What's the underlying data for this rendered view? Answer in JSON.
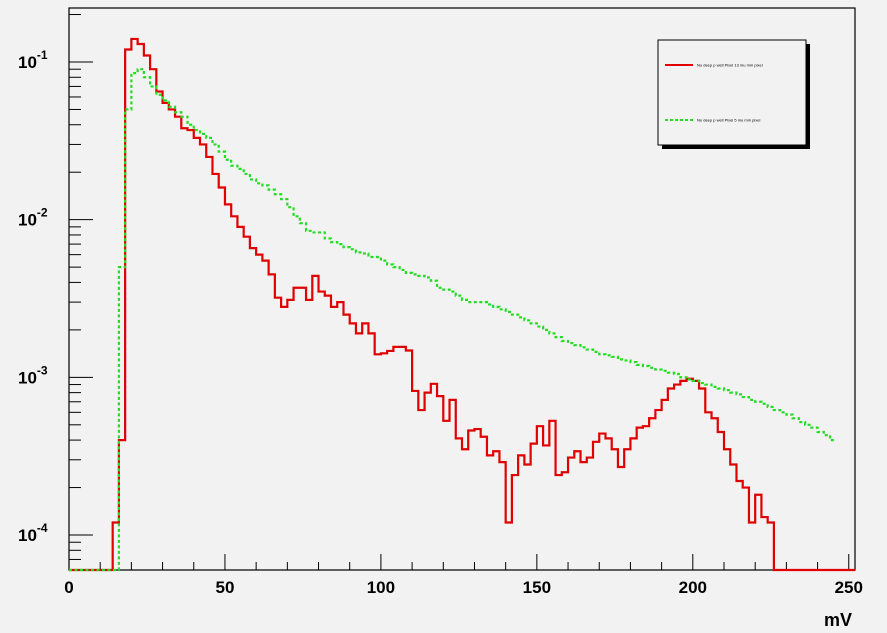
{
  "chart_data": {
    "type": "line",
    "step": true,
    "xlabel": "mV",
    "ylabel": "",
    "xlim": [
      0,
      252
    ],
    "ylim": [
      6e-05,
      0.22
    ],
    "yscale": "log",
    "grid": false,
    "legend_position": "top-right",
    "x_ticks": [
      {
        "value": 0,
        "label": "0"
      },
      {
        "value": 50,
        "label": "50"
      },
      {
        "value": 100,
        "label": "100"
      },
      {
        "value": 150,
        "label": "150"
      },
      {
        "value": 200,
        "label": "200"
      },
      {
        "value": 250,
        "label": "250"
      }
    ],
    "y_ticks": [
      {
        "value": 0.1,
        "base": "10",
        "exp": "-1"
      },
      {
        "value": 0.01,
        "base": "10",
        "exp": "-2"
      },
      {
        "value": 0.001,
        "base": "10",
        "exp": "-3"
      },
      {
        "value": 0.0001,
        "base": "10",
        "exp": "-4"
      }
    ],
    "bin_width": 2,
    "bin_start": 0,
    "series": [
      {
        "name": "No deep p well Pixel 13 mu mm pixel",
        "color": "#e00000",
        "dash": "solid",
        "values": [
          0,
          0,
          0,
          0,
          0,
          0,
          0,
          0.00012,
          0.0004,
          0.12,
          0.14,
          0.13,
          0.11,
          0.09,
          0.065,
          0.055,
          0.05,
          0.045,
          0.038,
          0.037,
          0.033,
          0.03,
          0.025,
          0.0195,
          0.016,
          0.0125,
          0.0105,
          0.009,
          0.0078,
          0.0066,
          0.006,
          0.0055,
          0.0045,
          0.0032,
          0.0028,
          0.0031,
          0.0037,
          0.0037,
          0.0031,
          0.0044,
          0.0035,
          0.0033,
          0.0028,
          0.003,
          0.0025,
          0.0022,
          0.0019,
          0.0022,
          0.0019,
          0.0014,
          0.00142,
          0.00147,
          0.00156,
          0.00156,
          0.00148,
          0.00082,
          0.00062,
          0.0008,
          0.00091,
          0.00076,
          0.00053,
          0.00072,
          0.00041,
          0.00035,
          0.00046,
          0.00047,
          0.00042,
          0.00032,
          0.00034,
          0.00029,
          0.00012,
          0.00024,
          0.00032,
          0.00028,
          0.00038,
          0.00049,
          0.00037,
          0.00053,
          0.00024,
          0.00025,
          0.00031,
          0.00034,
          0.00029,
          0.00031,
          0.00039,
          0.00044,
          0.00041,
          0.00035,
          0.00027,
          0.00035,
          0.00041,
          0.00048,
          0.00049,
          0.00055,
          0.00062,
          0.00072,
          0.00085,
          0.0009,
          0.00095,
          0.00098,
          0.00095,
          0.00085,
          0.0006,
          0.00055,
          0.00045,
          0.00035,
          0.00028,
          0.00022,
          0.0002,
          0.00012,
          0.00018,
          0.00013,
          0.00012,
          0.0,
          0,
          0,
          0,
          0,
          0,
          0,
          0,
          0,
          0,
          0,
          0,
          0
        ]
      },
      {
        "name": "No deep p well Pixel 5 mu mm pixel",
        "color": "#22dd22",
        "dash": "dotted",
        "values": [
          0,
          0,
          0,
          0,
          0,
          0,
          0,
          0,
          0.005,
          0.05,
          0.085,
          0.09,
          0.08,
          0.07,
          0.062,
          0.057,
          0.052,
          0.048,
          0.045,
          0.04,
          0.037,
          0.035,
          0.033,
          0.03,
          0.027,
          0.024,
          0.022,
          0.021,
          0.0195,
          0.018,
          0.017,
          0.0165,
          0.0155,
          0.0145,
          0.0135,
          0.012,
          0.0105,
          0.0095,
          0.0085,
          0.0083,
          0.0083,
          0.0076,
          0.0072,
          0.007,
          0.0067,
          0.0065,
          0.0062,
          0.0061,
          0.0058,
          0.0058,
          0.0055,
          0.0052,
          0.005,
          0.0048,
          0.0046,
          0.0045,
          0.0044,
          0.0043,
          0.0041,
          0.0037,
          0.0036,
          0.0035,
          0.0033,
          0.0031,
          0.003,
          0.003,
          0.003,
          0.0029,
          0.0028,
          0.0027,
          0.0026,
          0.0025,
          0.0024,
          0.0023,
          0.0022,
          0.0021,
          0.002,
          0.0019,
          0.0018,
          0.0017,
          0.00165,
          0.0016,
          0.00155,
          0.0015,
          0.00145,
          0.0014,
          0.00138,
          0.00135,
          0.0013,
          0.00128,
          0.00125,
          0.0012,
          0.00118,
          0.00115,
          0.00112,
          0.0011,
          0.00107,
          0.00105,
          0.001,
          0.00097,
          0.00095,
          0.00092,
          0.0009,
          0.00087,
          0.00085,
          0.00083,
          0.0008,
          0.00078,
          0.00075,
          0.00072,
          0.0007,
          0.00068,
          0.00065,
          0.00062,
          0.0006,
          0.00058,
          0.00055,
          0.00052,
          0.0005,
          0.00048,
          0.00045,
          0.00043,
          0.0004
        ]
      }
    ]
  }
}
